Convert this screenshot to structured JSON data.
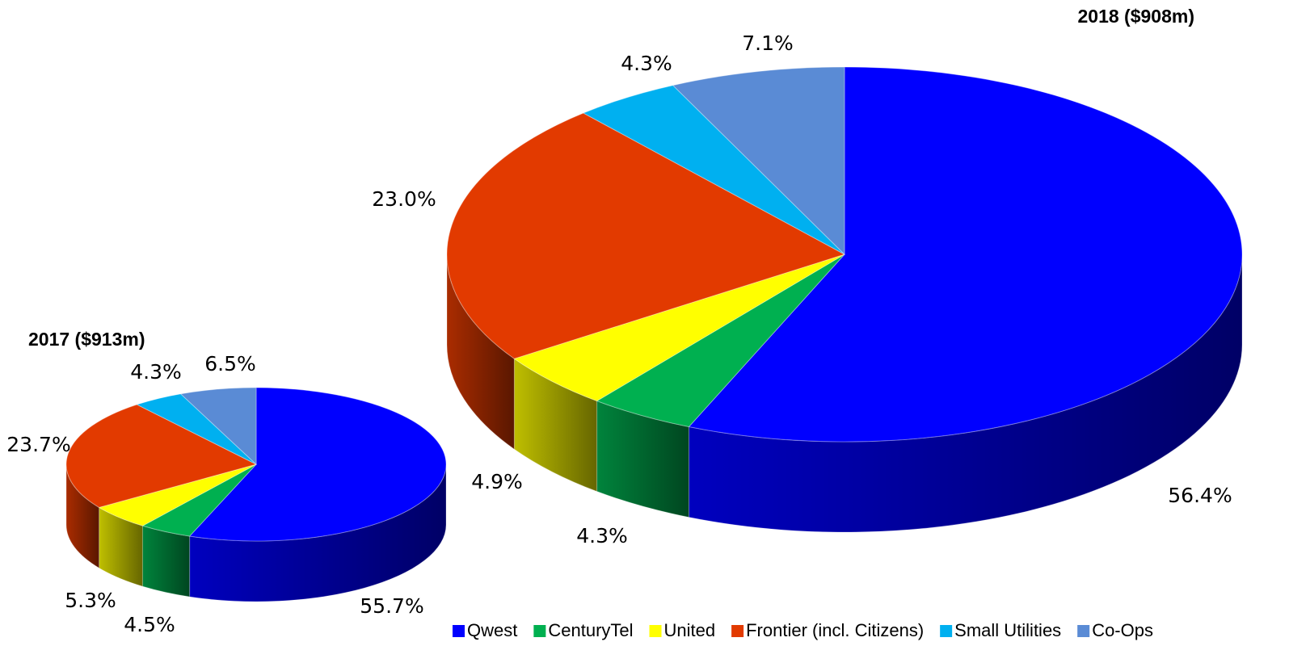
{
  "chart_data": [
    {
      "type": "pie",
      "title": "2017 ($913m)",
      "categories": [
        "Qwest",
        "CenturyTel",
        "United",
        "Frontier (incl. Citizens)",
        "Small Utilities",
        "Co-Ops"
      ],
      "values": [
        55.7,
        4.5,
        5.3,
        23.7,
        4.3,
        6.5
      ],
      "value_labels": [
        "55.7%",
        "4.5%",
        "5.3%",
        "23.7%",
        "4.3%",
        "6.5%"
      ],
      "colors": [
        "#0000ff",
        "#00b050",
        "#ffff00",
        "#e23a00",
        "#00b0f0",
        "#5a8bd5"
      ],
      "legend": "bottom-right"
    },
    {
      "type": "pie",
      "title": "2018 ($908m)",
      "categories": [
        "Qwest",
        "CenturyTel",
        "United",
        "Frontier (incl. Citizens)",
        "Small Utilities",
        "Co-Ops"
      ],
      "values": [
        56.4,
        4.3,
        4.9,
        23.0,
        4.3,
        7.1
      ],
      "value_labels": [
        "56.4%",
        "4.3%",
        "4.9%",
        "23.0%",
        "4.3%",
        "7.1%"
      ],
      "colors": [
        "#0000ff",
        "#00b050",
        "#ffff00",
        "#e23a00",
        "#00b0f0",
        "#5a8bd5"
      ]
    }
  ]
}
